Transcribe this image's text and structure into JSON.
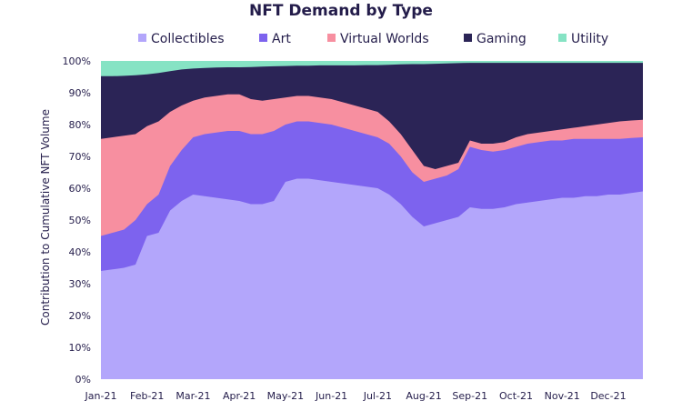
{
  "chart_data": {
    "type": "area",
    "stacked": true,
    "normalized": true,
    "title": "NFT Demand by Type",
    "ylabel": "Contribution to Cumulative NFT Volume",
    "xlabel": "",
    "ylim": [
      0,
      100
    ],
    "y_ticks": [
      "0%",
      "10%",
      "20%",
      "30%",
      "40%",
      "50%",
      "60%",
      "70%",
      "80%",
      "90%",
      "100%"
    ],
    "x_tick_labels": [
      "Jan-21",
      "Feb-21",
      "Mar-21",
      "Apr-21",
      "May-21",
      "Jun-21",
      "Jul-21",
      "Aug-21",
      "Sep-21",
      "Oct-21",
      "Nov-21",
      "Dec-21"
    ],
    "legend_position": "top",
    "grid": false,
    "x": [
      0,
      0.25,
      0.5,
      0.75,
      1.0,
      1.25,
      1.5,
      1.75,
      2.0,
      2.25,
      2.5,
      2.75,
      3.0,
      3.25,
      3.5,
      3.75,
      4.0,
      4.25,
      4.5,
      4.75,
      5.0,
      5.25,
      5.5,
      5.75,
      6.0,
      6.25,
      6.5,
      6.75,
      7.0,
      7.25,
      7.5,
      7.75,
      8.0,
      8.25,
      8.5,
      8.75,
      9.0,
      9.25,
      9.5,
      9.75,
      10.0,
      10.25,
      10.5,
      10.75,
      11.0,
      11.25,
      11.5,
      11.75
    ],
    "series": [
      {
        "name": "Collectibles",
        "color": "#b3a6fb",
        "values": [
          34,
          34.5,
          35,
          36,
          45,
          46,
          53,
          56,
          58,
          57.5,
          57,
          56.5,
          56,
          55,
          55,
          56,
          62,
          63,
          63,
          62.5,
          62,
          61.5,
          61,
          60.5,
          60,
          58,
          55,
          51,
          48,
          49,
          50,
          51,
          54,
          53.5,
          53.5,
          54,
          55,
          55.5,
          56,
          56.5,
          57,
          57,
          57.5,
          57.5,
          58,
          58,
          58.5,
          59
        ]
      },
      {
        "name": "Art",
        "color": "#7d63ee",
        "values": [
          45,
          46,
          47,
          50,
          55,
          58,
          67,
          72,
          76,
          77,
          77.5,
          78,
          78,
          77,
          77,
          78,
          80,
          81,
          81,
          80.5,
          80,
          79,
          78,
          77,
          76,
          74,
          70,
          65,
          62,
          63,
          64,
          66,
          73,
          72,
          71.5,
          72,
          73,
          74,
          74.5,
          75,
          75,
          75.5,
          75.5,
          75.5,
          75.5,
          75.5,
          75.8,
          76
        ]
      },
      {
        "name": "Virtual Worlds",
        "color": "#f78fa0",
        "values": [
          75.5,
          76,
          76.5,
          77,
          79.5,
          81,
          84,
          86,
          87.5,
          88.5,
          89,
          89.5,
          89.5,
          88,
          87.5,
          88,
          88.5,
          89,
          89,
          88.5,
          88,
          87,
          86,
          85,
          84,
          81,
          77,
          72,
          67,
          66,
          67,
          68,
          75,
          74,
          74,
          74.5,
          76,
          77,
          77.5,
          78,
          78.5,
          79,
          79.5,
          80,
          80.5,
          81,
          81.3,
          81.5
        ]
      },
      {
        "name": "Gaming",
        "color": "#2b2456",
        "values": [
          95.2,
          95.2,
          95.3,
          95.5,
          95.8,
          96.2,
          96.8,
          97.3,
          97.6,
          97.8,
          97.9,
          98,
          98,
          98.1,
          98.2,
          98.3,
          98.4,
          98.5,
          98.5,
          98.6,
          98.6,
          98.6,
          98.6,
          98.7,
          98.7,
          98.8,
          98.9,
          99,
          99,
          99.1,
          99.2,
          99.3,
          99.4,
          99.4,
          99.4,
          99.4,
          99.4,
          99.4,
          99.4,
          99.4,
          99.4,
          99.4,
          99.4,
          99.4,
          99.4,
          99.4,
          99.4,
          99.4
        ]
      },
      {
        "name": "Utility",
        "color": "#86e3c4",
        "values": [
          100,
          100,
          100,
          100,
          100,
          100,
          100,
          100,
          100,
          100,
          100,
          100,
          100,
          100,
          100,
          100,
          100,
          100,
          100,
          100,
          100,
          100,
          100,
          100,
          100,
          100,
          100,
          100,
          100,
          100,
          100,
          100,
          100,
          100,
          100,
          100,
          100,
          100,
          100,
          100,
          100,
          100,
          100,
          100,
          100,
          100,
          100,
          100
        ]
      }
    ],
    "values_are_cumulative_top_edges": true
  }
}
